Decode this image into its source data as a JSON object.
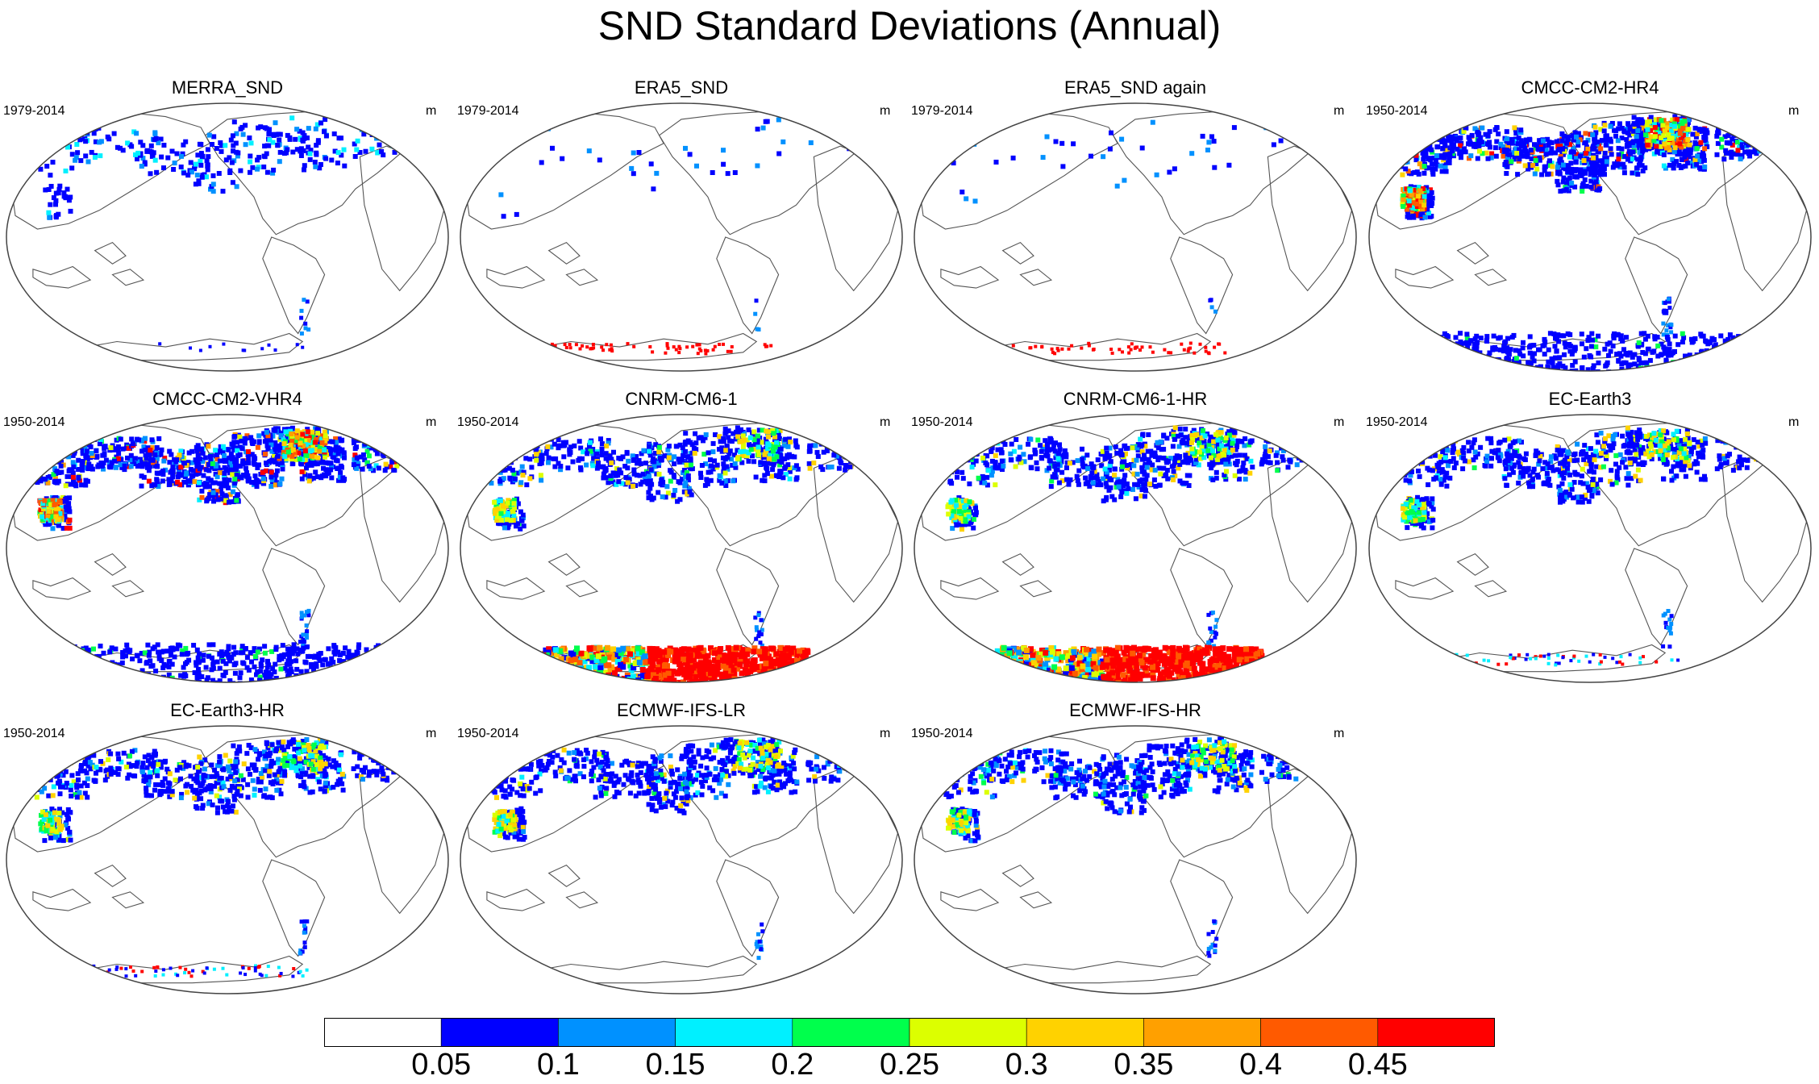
{
  "title": "SND Standard Deviations (Annual)",
  "panels": [
    {
      "name": "MERRA_SND",
      "period": "1979-2014",
      "unit": "m",
      "intensity": "low",
      "antarctic": "sparse"
    },
    {
      "name": "ERA5_SND",
      "period": "1979-2014",
      "unit": "m",
      "intensity": "minimal",
      "antarctic": "edge-red"
    },
    {
      "name": "ERA5_SND again",
      "period": "1979-2014",
      "unit": "m",
      "intensity": "minimal",
      "antarctic": "edge-red"
    },
    {
      "name": "CMCC-CM2-HR4",
      "period": "1950-2014",
      "unit": "m",
      "intensity": "high",
      "antarctic": "blue-scatter"
    },
    {
      "name": "CMCC-CM2-VHR4",
      "period": "1950-2014",
      "unit": "m",
      "intensity": "high",
      "antarctic": "blue-scatter"
    },
    {
      "name": "CNRM-CM6-1",
      "period": "1950-2014",
      "unit": "m",
      "intensity": "medium",
      "antarctic": "full-red"
    },
    {
      "name": "CNRM-CM6-1-HR",
      "period": "1950-2014",
      "unit": "m",
      "intensity": "medium",
      "antarctic": "full-red"
    },
    {
      "name": "EC-Earth3",
      "period": "1950-2014",
      "unit": "m",
      "intensity": "medium",
      "antarctic": "edge-mixed"
    },
    {
      "name": "EC-Earth3-HR",
      "period": "1950-2014",
      "unit": "m",
      "intensity": "medium",
      "antarctic": "edge-mixed"
    },
    {
      "name": "ECMWF-IFS-LR",
      "period": "1950-2014",
      "unit": "m",
      "intensity": "medium",
      "antarctic": "none"
    },
    {
      "name": "ECMWF-IFS-HR",
      "period": "1950-2014",
      "unit": "m",
      "intensity": "medium",
      "antarctic": "none"
    }
  ],
  "colorbar": {
    "labels": [
      "0.05",
      "0.1",
      "0.15",
      "0.2",
      "0.25",
      "0.3",
      "0.35",
      "0.4",
      "0.45"
    ],
    "colors": [
      "#ffffff",
      "#0000ff",
      "#0091ff",
      "#00f0ff",
      "#00ff4c",
      "#dcff00",
      "#ffd200",
      "#ffa000",
      "#ff5a00",
      "#ff0000"
    ]
  }
}
